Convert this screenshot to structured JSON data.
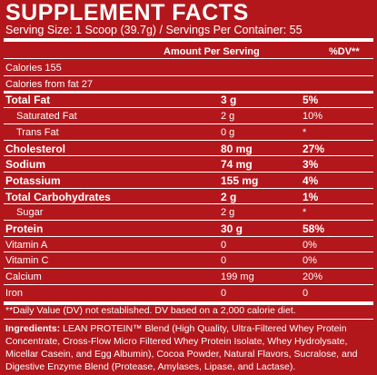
{
  "header": {
    "title": "SUPPLEMENT FACTS",
    "serving": "Serving Size: 1 Scoop (39.7g) / Servings Per Container: 55"
  },
  "table": {
    "columns": [
      "Amount Per Serving",
      "%DV**"
    ],
    "rows": [
      {
        "name": "Calories 155"
      },
      {
        "name": "Calories from fat 27"
      },
      {
        "name": "Total Fat",
        "amount": "3 g",
        "dv": "5%",
        "bold": true
      },
      {
        "name": "Saturated Fat",
        "amount": "2 g",
        "dv": "10%",
        "indent": true
      },
      {
        "name": "Trans Fat",
        "amount": "0 g",
        "dv": "*",
        "indent": true
      },
      {
        "name": "Cholesterol",
        "amount": "80 mg",
        "dv": "27%",
        "bold": true
      },
      {
        "name": "Sodium",
        "amount": "74 mg",
        "dv": "3%",
        "bold": true
      },
      {
        "name": "Potassium",
        "amount": "155 mg",
        "dv": "4%",
        "bold": true
      },
      {
        "name": "Total Carbohydrates",
        "amount": "2 g",
        "dv": "1%",
        "bold": true
      },
      {
        "name": "Sugar",
        "amount": "2 g",
        "dv": "*",
        "indent": true
      },
      {
        "name": "Protein",
        "amount": "30 g",
        "dv": "58%",
        "bold": true
      },
      {
        "name": "Vitamin A",
        "amount": "0",
        "dv": "0%"
      },
      {
        "name": "Vitamin C",
        "amount": "0",
        "dv": "0%"
      },
      {
        "name": "Calcium",
        "amount": "199 mg",
        "dv": "20%"
      },
      {
        "name": "Iron",
        "amount": "0",
        "dv": "0"
      }
    ]
  },
  "footnote": "**Daily Value (DV) not established.  DV based on a 2,000 calorie diet.",
  "ingredients": {
    "label": "Ingredients:",
    "text": "LEAN PROTEIN™ Blend (High Quality, Ultra-Filtered Whey Protein Concentrate, Cross-Flow Micro Filtered Whey Protein Isolate, Whey Hydrolysate, Micellar Casein, and Egg Albumin), Cocoa Powder, Natural Flavors, Sucralose, and Digestive Enzyme Blend (Protease, Amylases, Lipase, and Lactase)."
  }
}
